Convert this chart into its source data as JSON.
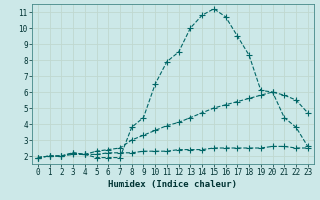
{
  "xlabel": "Humidex (Indice chaleur)",
  "bg_color": "#cce8e8",
  "grid_color": "#c0d8d0",
  "line_color": "#006666",
  "xlim": [
    -0.5,
    23.5
  ],
  "ylim": [
    1.5,
    11.5
  ],
  "xticks": [
    0,
    1,
    2,
    3,
    4,
    5,
    6,
    7,
    8,
    9,
    10,
    11,
    12,
    13,
    14,
    15,
    16,
    17,
    18,
    19,
    20,
    21,
    22,
    23
  ],
  "yticks": [
    2,
    3,
    4,
    5,
    6,
    7,
    8,
    9,
    10,
    11
  ],
  "curve1_x": [
    0,
    1,
    2,
    3,
    4,
    5,
    6,
    7,
    8,
    9,
    10,
    11,
    12,
    13,
    14,
    15,
    16,
    17,
    18,
    19,
    20,
    21,
    22,
    23
  ],
  "curve1_y": [
    1.9,
    2.0,
    2.0,
    2.2,
    2.1,
    1.9,
    1.9,
    1.9,
    3.8,
    4.4,
    6.5,
    7.9,
    8.5,
    10.0,
    10.8,
    11.2,
    10.7,
    9.5,
    8.3,
    6.1,
    6.0,
    4.4,
    3.8,
    2.6
  ],
  "curve2_x": [
    0,
    1,
    2,
    3,
    4,
    5,
    6,
    7,
    8,
    9,
    10,
    11,
    12,
    13,
    14,
    15,
    16,
    17,
    18,
    19,
    20,
    21,
    22,
    23
  ],
  "curve2_y": [
    1.9,
    2.0,
    2.0,
    2.2,
    2.1,
    2.3,
    2.4,
    2.5,
    3.0,
    3.3,
    3.6,
    3.9,
    4.1,
    4.4,
    4.7,
    5.0,
    5.2,
    5.4,
    5.6,
    5.8,
    6.0,
    5.8,
    5.5,
    4.7
  ],
  "curve3_x": [
    0,
    1,
    2,
    3,
    4,
    5,
    6,
    7,
    8,
    9,
    10,
    11,
    12,
    13,
    14,
    15,
    16,
    17,
    18,
    19,
    20,
    21,
    22,
    23
  ],
  "curve3_y": [
    1.9,
    2.0,
    2.0,
    2.1,
    2.1,
    2.1,
    2.2,
    2.2,
    2.2,
    2.3,
    2.3,
    2.3,
    2.4,
    2.4,
    2.4,
    2.5,
    2.5,
    2.5,
    2.5,
    2.5,
    2.6,
    2.6,
    2.5,
    2.5
  ]
}
